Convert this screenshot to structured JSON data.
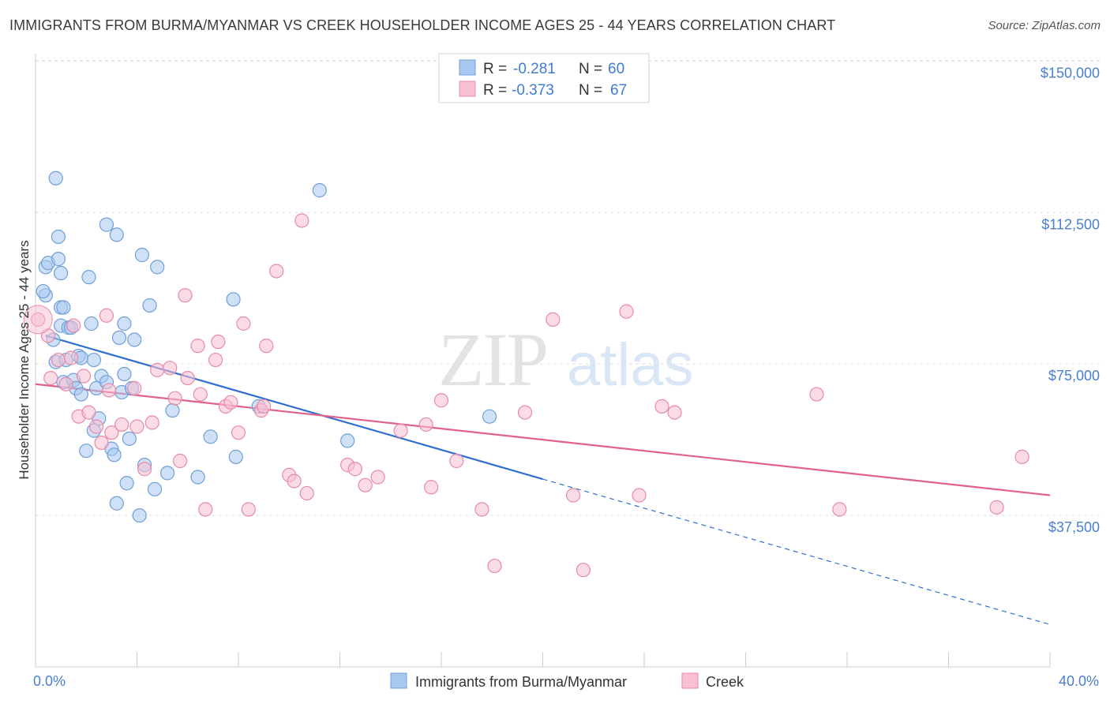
{
  "title": "IMMIGRANTS FROM BURMA/MYANMAR VS CREEK HOUSEHOLDER INCOME AGES 25 - 44 YEARS CORRELATION CHART",
  "source": "Source: ZipAtlas.com",
  "watermark": {
    "zip": "ZIP",
    "atlas": "atlas"
  },
  "chart_data": {
    "type": "scatter",
    "xlabel": "",
    "ylabel": "Householder Income Ages 25 - 44 years",
    "xlim": [
      0,
      40
    ],
    "ylim": [
      0,
      153000
    ],
    "x_ticks": [
      "0.0%",
      "40.0%"
    ],
    "y_ticks": [
      {
        "value": 150000,
        "label": "$150,000"
      },
      {
        "value": 112500,
        "label": "$112,500"
      },
      {
        "value": 75000,
        "label": "$75,000"
      },
      {
        "value": 37500,
        "label": "$37,500"
      }
    ],
    "legend": {
      "position": "top-center",
      "entries": [
        {
          "r_label": "R =",
          "r_value": "-0.281",
          "n_label": "N =",
          "n_value": "60"
        },
        {
          "r_label": "R =",
          "r_value": "-0.373",
          "n_label": "N =",
          "n_value": "67"
        }
      ]
    },
    "series": [
      {
        "name": "Immigrants from Burma/Myanmar",
        "color": "#a9c8f0",
        "stroke": "#6f9fd8",
        "trend": {
          "x": [
            0.4,
            20.0
          ],
          "y": [
            82000,
            46500
          ],
          "dashed_to": [
            40.0,
            10500
          ],
          "color": "#2f6fd0"
        },
        "points": [
          [
            0.4,
            92000
          ],
          [
            0.4,
            99000
          ],
          [
            0.3,
            93000
          ],
          [
            0.5,
            100000
          ],
          [
            0.8,
            121000
          ],
          [
            0.7,
            81000
          ],
          [
            0.8,
            75500
          ],
          [
            0.9,
            106500
          ],
          [
            0.9,
            101000
          ],
          [
            1.0,
            97500
          ],
          [
            1.0,
            84500
          ],
          [
            1.0,
            89000
          ],
          [
            1.1,
            89000
          ],
          [
            1.1,
            70500
          ],
          [
            1.2,
            76000
          ],
          [
            1.3,
            84000
          ],
          [
            1.4,
            84000
          ],
          [
            1.5,
            71000
          ],
          [
            1.6,
            69000
          ],
          [
            1.7,
            77000
          ],
          [
            1.8,
            67500
          ],
          [
            1.8,
            76500
          ],
          [
            2.1,
            96500
          ],
          [
            2.2,
            85000
          ],
          [
            2.3,
            76000
          ],
          [
            2.4,
            69000
          ],
          [
            2.5,
            61500
          ],
          [
            2.6,
            72000
          ],
          [
            2.8,
            70500
          ],
          [
            2.8,
            109500
          ],
          [
            3.0,
            54000
          ],
          [
            3.1,
            52500
          ],
          [
            3.2,
            40500
          ],
          [
            3.2,
            107000
          ],
          [
            3.3,
            81500
          ],
          [
            3.4,
            68000
          ],
          [
            3.5,
            72500
          ],
          [
            3.5,
            85000
          ],
          [
            3.6,
            45500
          ],
          [
            3.7,
            56500
          ],
          [
            3.8,
            69000
          ],
          [
            3.9,
            81000
          ],
          [
            4.1,
            37500
          ],
          [
            4.2,
            102000
          ],
          [
            4.3,
            50000
          ],
          [
            4.5,
            89500
          ],
          [
            4.7,
            44000
          ],
          [
            4.8,
            99000
          ],
          [
            5.2,
            48000
          ],
          [
            5.4,
            63500
          ],
          [
            6.4,
            47000
          ],
          [
            6.9,
            57000
          ],
          [
            7.8,
            91000
          ],
          [
            7.9,
            52000
          ],
          [
            8.8,
            64500
          ],
          [
            11.2,
            118000
          ],
          [
            12.3,
            56000
          ],
          [
            17.9,
            62000
          ],
          [
            2.3,
            58500
          ],
          [
            2.0,
            53500
          ]
        ]
      },
      {
        "name": "Creek",
        "color": "#f7c0d2",
        "stroke": "#e889a8",
        "trend": {
          "x": [
            0.0,
            40.0
          ],
          "y": [
            70000,
            42500
          ],
          "color": "#e0628c"
        },
        "points": [
          [
            0.1,
            86000
          ],
          [
            0.5,
            82000
          ],
          [
            0.6,
            71500
          ],
          [
            0.9,
            76000
          ],
          [
            1.4,
            76500
          ],
          [
            1.5,
            84500
          ],
          [
            1.7,
            62000
          ],
          [
            1.9,
            72000
          ],
          [
            2.1,
            63000
          ],
          [
            2.4,
            59500
          ],
          [
            2.6,
            55500
          ],
          [
            2.8,
            87000
          ],
          [
            3.0,
            58000
          ],
          [
            3.4,
            60000
          ],
          [
            3.9,
            69000
          ],
          [
            4.0,
            59500
          ],
          [
            4.3,
            49000
          ],
          [
            4.6,
            60500
          ],
          [
            4.8,
            73500
          ],
          [
            5.3,
            74000
          ],
          [
            5.5,
            66500
          ],
          [
            5.7,
            51000
          ],
          [
            5.9,
            92000
          ],
          [
            6.0,
            71500
          ],
          [
            6.4,
            79500
          ],
          [
            6.5,
            67500
          ],
          [
            6.7,
            39000
          ],
          [
            7.1,
            76000
          ],
          [
            7.2,
            80500
          ],
          [
            7.5,
            64500
          ],
          [
            7.7,
            65500
          ],
          [
            8.0,
            58000
          ],
          [
            8.2,
            85000
          ],
          [
            8.4,
            39000
          ],
          [
            8.9,
            63500
          ],
          [
            9.0,
            64500
          ],
          [
            9.1,
            79500
          ],
          [
            9.5,
            98000
          ],
          [
            10.0,
            47500
          ],
          [
            10.2,
            46000
          ],
          [
            10.5,
            110500
          ],
          [
            10.7,
            43000
          ],
          [
            12.3,
            50000
          ],
          [
            12.6,
            49000
          ],
          [
            13.0,
            45000
          ],
          [
            13.5,
            47000
          ],
          [
            14.4,
            58500
          ],
          [
            15.4,
            60000
          ],
          [
            15.6,
            44500
          ],
          [
            16.0,
            66000
          ],
          [
            16.6,
            51000
          ],
          [
            17.6,
            39000
          ],
          [
            18.1,
            25000
          ],
          [
            19.3,
            63000
          ],
          [
            20.4,
            86000
          ],
          [
            21.2,
            42500
          ],
          [
            21.6,
            24000
          ],
          [
            23.3,
            88000
          ],
          [
            23.8,
            42500
          ],
          [
            24.7,
            64500
          ],
          [
            25.2,
            63000
          ],
          [
            30.8,
            67500
          ],
          [
            31.7,
            39000
          ],
          [
            37.9,
            39500
          ],
          [
            38.9,
            52000
          ],
          [
            2.9,
            68500
          ],
          [
            1.2,
            70000
          ]
        ]
      }
    ]
  }
}
